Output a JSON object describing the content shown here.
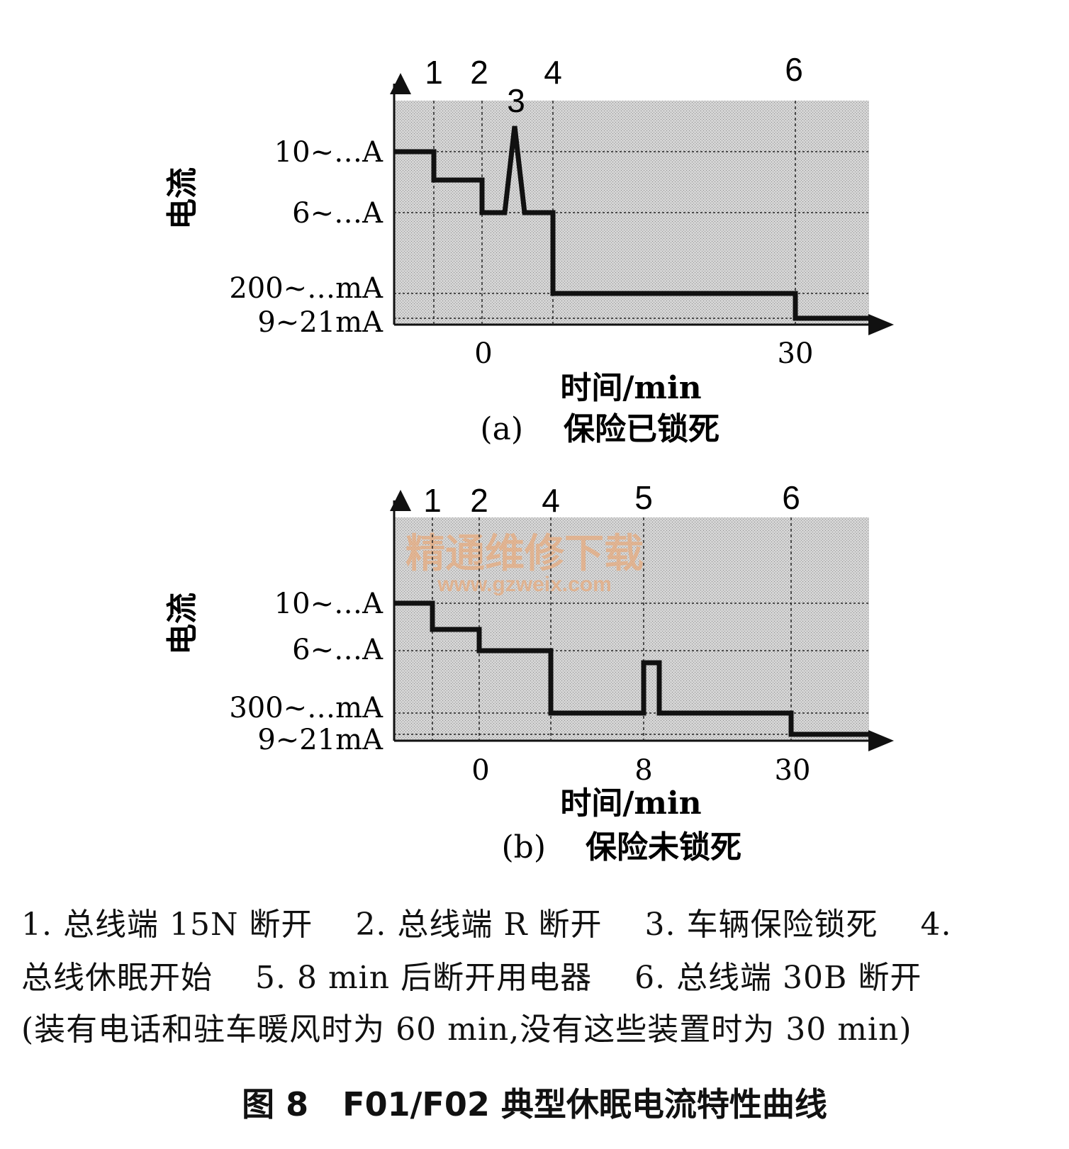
{
  "chart_data": [
    {
      "type": "line",
      "title": "保险已锁死",
      "subtitle_label": "(a)",
      "xlabel": "时间/min",
      "ylabel": "电流",
      "x_ticks": [
        "0",
        "30"
      ],
      "y_ticks": [
        "10~…A",
        "6~…A",
        "200~…mA",
        "9~21mA"
      ],
      "event_markers": [
        "1",
        "2",
        "3",
        "4",
        "6"
      ],
      "series": [
        {
          "values": [
            [
              "start",
              "10~…A"
            ],
            [
              "1",
              "10~…A"
            ],
            [
              "1",
              "between 10~…A and 6~…A"
            ],
            [
              "2",
              "6~…A"
            ],
            [
              "3",
              "peak above 10~…A"
            ],
            [
              "3",
              "6~…A"
            ],
            [
              "4",
              "6~…A"
            ],
            [
              "4",
              "200~…mA"
            ],
            [
              "6",
              "200~…mA"
            ],
            [
              "6",
              "9~21mA"
            ],
            [
              "end",
              "9~21mA"
            ]
          ]
        }
      ],
      "grid": true,
      "background": "dotted gray"
    },
    {
      "type": "line",
      "title": "保险未锁死",
      "subtitle_label": "(b)",
      "xlabel": "时间/min",
      "ylabel": "电流",
      "x_ticks": [
        "0",
        "8",
        "30"
      ],
      "y_ticks": [
        "10~…A",
        "6~…A",
        "300~…mA",
        "9~21mA"
      ],
      "event_markers": [
        "1",
        "2",
        "4",
        "5",
        "6"
      ],
      "series": [
        {
          "values": [
            [
              "start",
              "10~…A"
            ],
            [
              "1",
              "10~…A"
            ],
            [
              "1",
              "between 10~…A and 6~…A"
            ],
            [
              "2",
              "6~…A"
            ],
            [
              "4",
              "6~…A"
            ],
            [
              "4",
              "300~…mA"
            ],
            [
              "5",
              "300~…mA"
            ],
            [
              "5",
              "pulse"
            ],
            [
              "5+",
              "300~…mA"
            ],
            [
              "6",
              "300~…mA"
            ],
            [
              "6",
              "9~21mA"
            ],
            [
              "end",
              "9~21mA"
            ]
          ]
        }
      ],
      "grid": true,
      "background": "dotted gray",
      "watermark": "精通维修下载 www.gzweix.com"
    }
  ],
  "annotations": {
    "line1": [
      "1. 总线端 15N 断开",
      "2. 总线端 R 断开",
      "3. 车辆保险锁死",
      "4."
    ],
    "line2": [
      "总线休眠开始",
      "5. 8 min 后断开用电器",
      "6. 总线端 30B 断开"
    ],
    "line3": "(装有电话和驻车暖风时为 60 min,没有这些装置时为 30 min)"
  },
  "caption": {
    "figure": "图 8",
    "title": "F01/F02 典型休眠电流特性曲线"
  },
  "colors": {
    "plot_bg": "#c8c8c8",
    "line": "#111111",
    "grid": "#222222",
    "watermark": "#e8a878"
  }
}
